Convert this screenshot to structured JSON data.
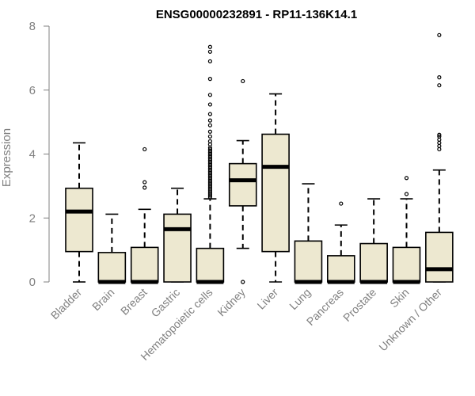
{
  "chart_data": {
    "type": "boxplot",
    "title": "ENSG00000232891 - RP11-136K14.1",
    "xlabel": "",
    "ylabel": "Expression",
    "ylim": [
      0,
      8
    ],
    "yticks": [
      0,
      2,
      4,
      6,
      8
    ],
    "categories": [
      "Bladder",
      "Brain",
      "Breast",
      "Gastric",
      "Hematopoietic cells",
      "Kidney",
      "Liver",
      "Lung",
      "Pancreas",
      "Prostate",
      "Skin",
      "Unknown / Other"
    ],
    "boxes": [
      {
        "min": 0,
        "q1": 0.95,
        "median": 2.2,
        "q3": 2.93,
        "max": 4.35,
        "outliers": []
      },
      {
        "min": 0,
        "q1": 0,
        "median": 0,
        "q3": 0.92,
        "max": 2.12,
        "outliers": []
      },
      {
        "min": 0,
        "q1": 0,
        "median": 0,
        "q3": 1.08,
        "max": 2.27,
        "outliers": [
          2.95,
          3.12,
          4.15
        ]
      },
      {
        "min": 0,
        "q1": 0,
        "median": 1.65,
        "q3": 2.12,
        "max": 2.93,
        "outliers": []
      },
      {
        "min": 0,
        "q1": 0,
        "median": 0,
        "q3": 1.05,
        "max": 2.6,
        "outliers": [
          2.65,
          2.7,
          2.75,
          2.8,
          2.85,
          2.9,
          2.95,
          3.0,
          3.05,
          3.1,
          3.15,
          3.2,
          3.25,
          3.3,
          3.35,
          3.4,
          3.45,
          3.5,
          3.55,
          3.6,
          3.65,
          3.7,
          3.75,
          3.8,
          3.85,
          3.9,
          3.95,
          4.0,
          4.05,
          4.1,
          4.15,
          4.2,
          4.3,
          4.4,
          4.55,
          4.7,
          4.9,
          5.05,
          5.25,
          5.55,
          5.85,
          6.35,
          6.9,
          7.2,
          7.35
        ]
      },
      {
        "min": 1.05,
        "q1": 2.38,
        "median": 3.18,
        "q3": 3.7,
        "max": 4.42,
        "outliers": [
          0,
          6.28
        ]
      },
      {
        "min": 0,
        "q1": 0.95,
        "median": 3.6,
        "q3": 4.62,
        "max": 5.88,
        "outliers": []
      },
      {
        "min": 0,
        "q1": 0,
        "median": 0,
        "q3": 1.28,
        "max": 3.07,
        "outliers": []
      },
      {
        "min": 0,
        "q1": 0,
        "median": 0,
        "q3": 0.82,
        "max": 1.78,
        "outliers": [
          2.45
        ]
      },
      {
        "min": 0,
        "q1": 0,
        "median": 0,
        "q3": 1.2,
        "max": 2.6,
        "outliers": []
      },
      {
        "min": 0,
        "q1": 0,
        "median": 0,
        "q3": 1.08,
        "max": 2.6,
        "outliers": [
          2.75,
          3.25
        ]
      },
      {
        "min": 0,
        "q1": 0,
        "median": 0.4,
        "q3": 1.55,
        "max": 3.5,
        "outliers": [
          4.15,
          4.25,
          4.35,
          4.45,
          4.55,
          4.6,
          6.15,
          6.4,
          7.72
        ]
      }
    ],
    "grid": false,
    "legend": "none"
  },
  "colors": {
    "box_fill": "#ede8d0",
    "box_stroke": "#000000",
    "axis": "#808080",
    "title": "#000000"
  }
}
